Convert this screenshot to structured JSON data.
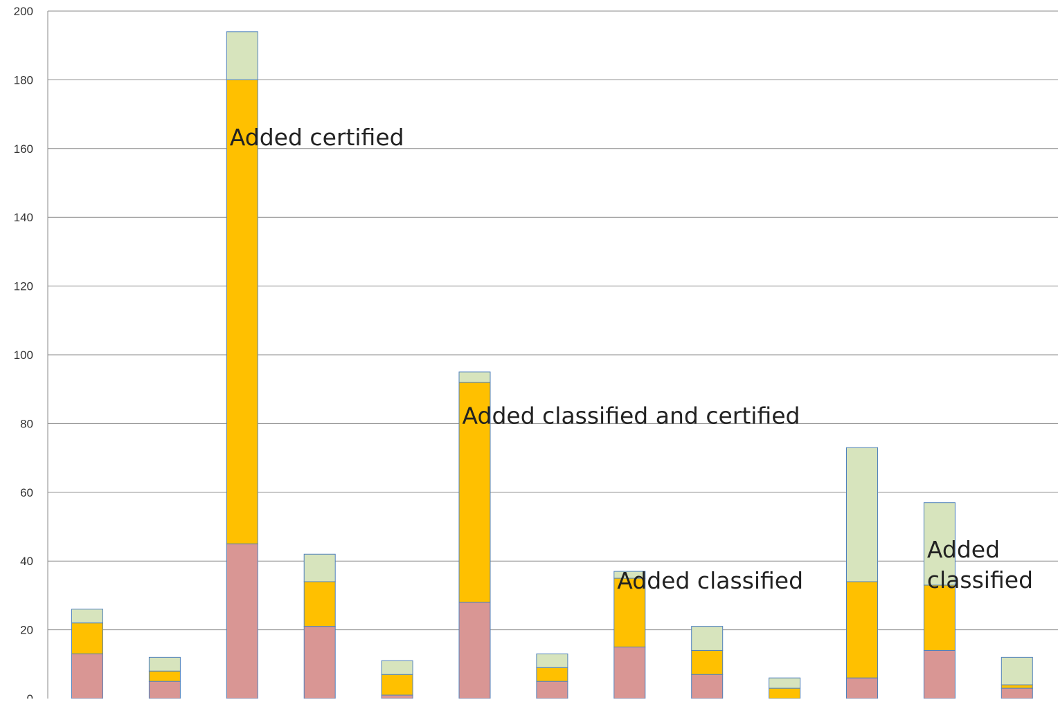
{
  "chart_data": {
    "type": "bar",
    "stacked": true,
    "title": "",
    "xlabel": "",
    "ylabel": "",
    "ylim": [
      0,
      200
    ],
    "yticks": [
      0,
      20,
      40,
      60,
      80,
      100,
      120,
      140,
      160,
      180,
      200
    ],
    "grid": true,
    "legend": "none",
    "category_count": 13,
    "series": [
      {
        "color": "#d99694",
        "values": [
          13,
          5,
          45,
          21,
          1,
          28,
          5,
          15,
          7,
          0,
          6,
          14,
          3
        ]
      },
      {
        "color": "#ffc000",
        "values": [
          9,
          3,
          135,
          13,
          6,
          64,
          4,
          20,
          7,
          3,
          28,
          19,
          1
        ]
      },
      {
        "color": "#d7e4bd",
        "values": [
          4,
          4,
          14,
          8,
          4,
          3,
          4,
          2,
          7,
          3,
          39,
          24,
          8
        ]
      }
    ],
    "annotations": [
      {
        "category": 2,
        "value": 161,
        "lines": [
          "Added certified"
        ]
      },
      {
        "category": 5,
        "value": 80,
        "lines": [
          "Added classified and certified"
        ]
      },
      {
        "category": 7,
        "value": 32,
        "lines": [
          "Added classified"
        ]
      },
      {
        "category": 11,
        "value": 41,
        "lines": [
          "Added",
          "classified"
        ]
      }
    ]
  }
}
